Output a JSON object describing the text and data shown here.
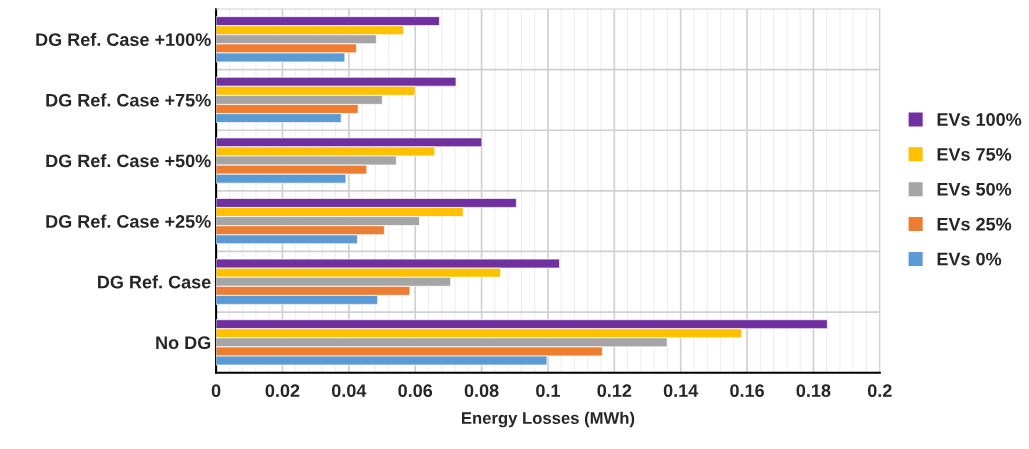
{
  "chart_data": {
    "type": "bar",
    "orientation": "horizontal",
    "xlabel": "Energy Losses (MWh)",
    "categories": [
      "DG Ref. Case +100%",
      "DG Ref. Case +75%",
      "DG Ref. Case +50%",
      "DG Ref. Case +25%",
      "DG Ref. Case",
      "No DG"
    ],
    "series": [
      {
        "name": "EVs 100%",
        "color": "#7030a0",
        "values": [
          0.0673,
          0.0723,
          0.0801,
          0.0905,
          0.1035,
          0.1842
        ]
      },
      {
        "name": "EVs 75%",
        "color": "#ffc000",
        "values": [
          0.0565,
          0.06,
          0.0659,
          0.0745,
          0.0857,
          0.1584
        ]
      },
      {
        "name": "EVs 50%",
        "color": "#a5a5a5",
        "values": [
          0.0483,
          0.0501,
          0.0543,
          0.0613,
          0.0707,
          0.1359
        ]
      },
      {
        "name": "EVs 25%",
        "color": "#ed7d31",
        "values": [
          0.0423,
          0.0428,
          0.0454,
          0.0507,
          0.0584,
          0.1164
        ]
      },
      {
        "name": "EVs 0%",
        "color": "#5b9bd5",
        "values": [
          0.0388,
          0.0377,
          0.0391,
          0.0426,
          0.0487,
          0.0997
        ]
      }
    ],
    "xlim": [
      0,
      0.2
    ],
    "xticks": [
      0,
      0.02,
      0.04,
      0.06,
      0.08,
      0.1,
      0.12,
      0.14,
      0.16,
      0.18,
      0.2
    ],
    "grid": true,
    "legend": "right"
  }
}
